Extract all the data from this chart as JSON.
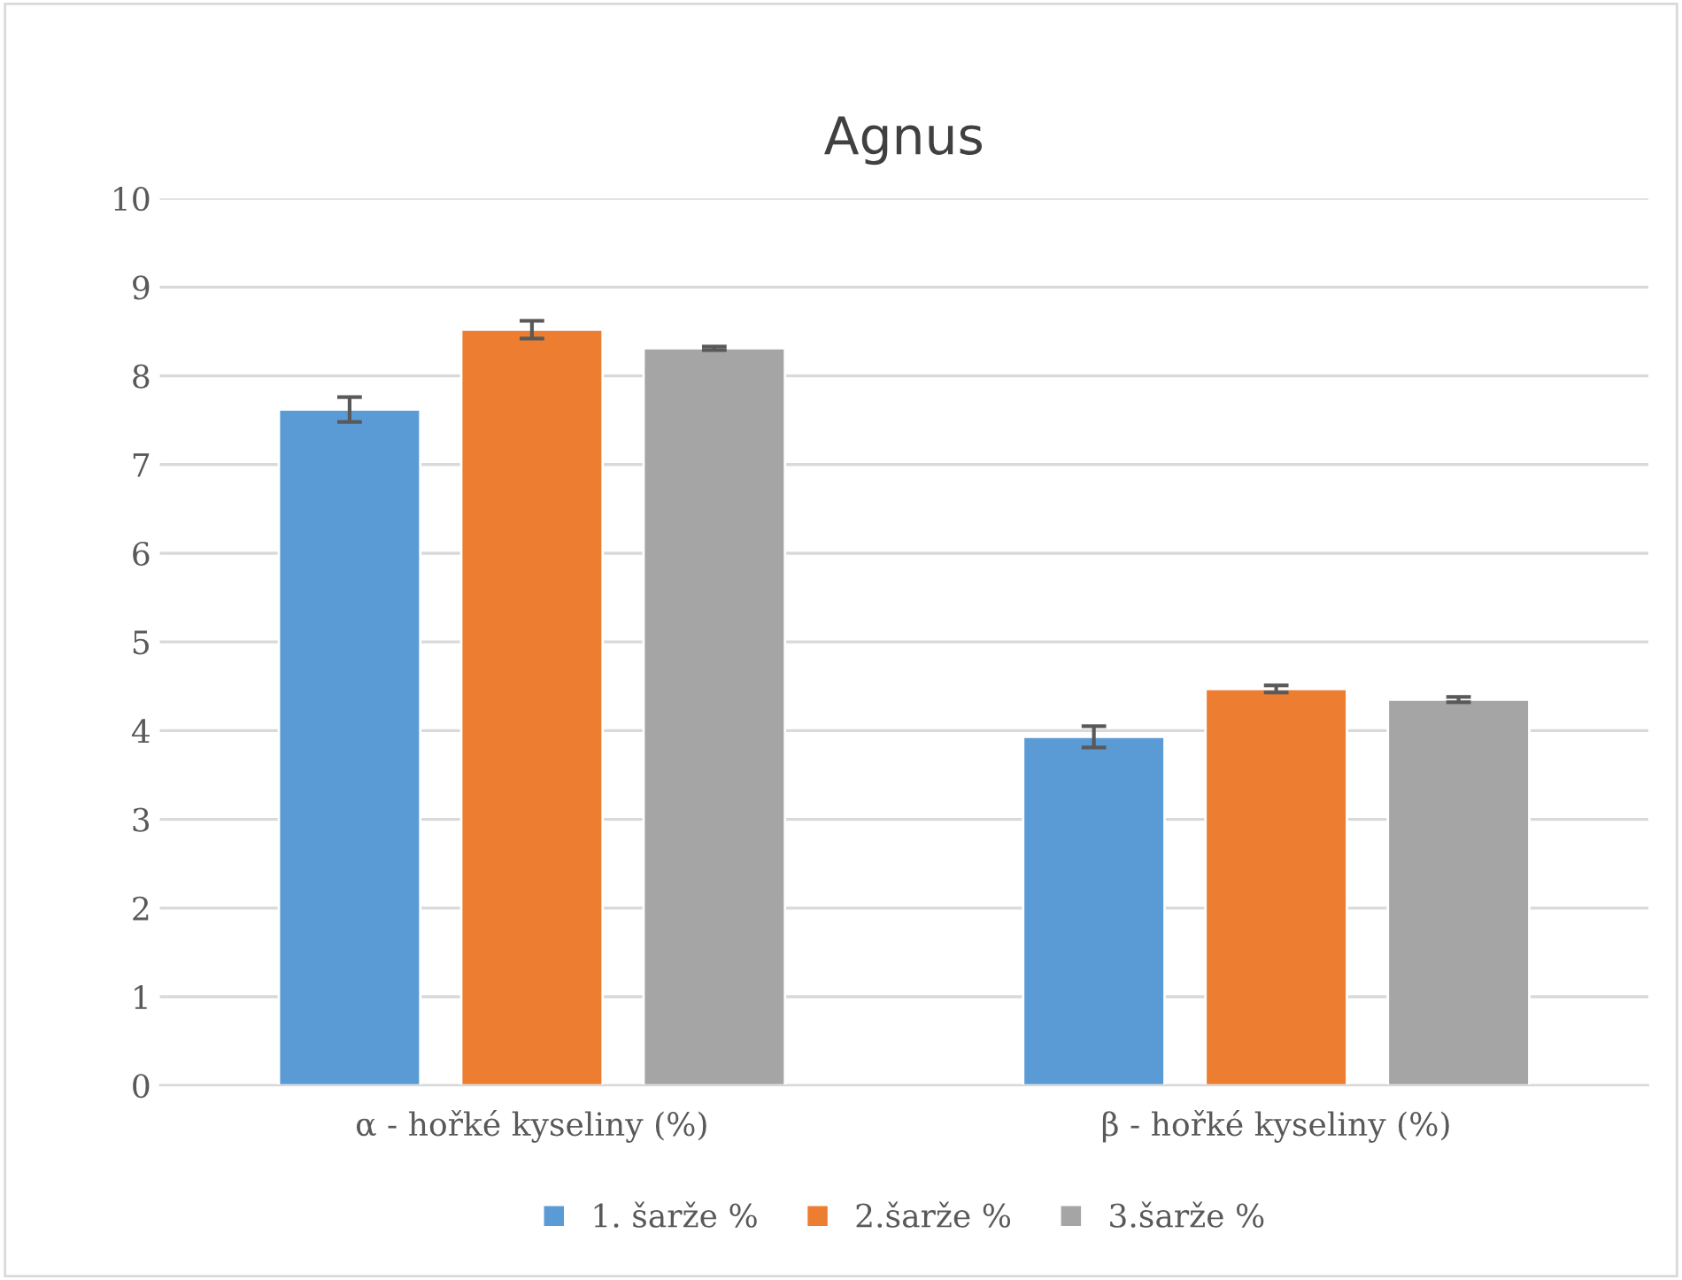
{
  "chart_data": {
    "type": "bar",
    "title": "Agnus",
    "categories": [
      "α - hořké kyseliny (%)",
      "β - hořké kyseliny (%)"
    ],
    "series": [
      {
        "name": "1. šarže %",
        "color": "#5b9bd5",
        "values": [
          7.62,
          3.93
        ],
        "errors": [
          0.14,
          0.12
        ]
      },
      {
        "name": "2.šarže %",
        "color": "#ed7d31",
        "values": [
          8.52,
          4.47
        ],
        "errors": [
          0.1,
          0.04
        ]
      },
      {
        "name": "3.šarže %",
        "color": "#a5a5a5",
        "values": [
          8.31,
          4.35
        ],
        "errors": [
          0.02,
          0.03
        ]
      }
    ],
    "ylim": [
      0,
      10
    ],
    "yticks": [
      0,
      1,
      2,
      3,
      4,
      5,
      6,
      7,
      8,
      9,
      10
    ],
    "grid": "y",
    "legend": "bottom"
  }
}
